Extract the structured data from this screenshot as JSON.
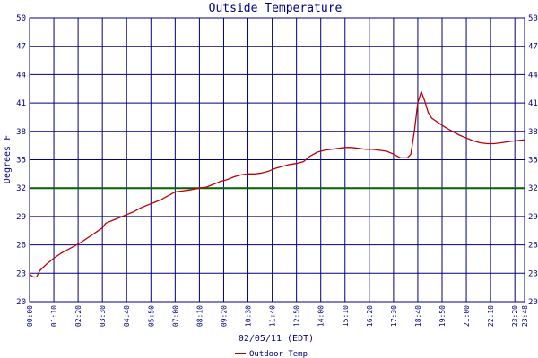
{
  "chart_data": {
    "type": "line",
    "title": "Outside Temperature",
    "xlabel": "02/05/11 (EDT)",
    "ylabel": "Degrees F",
    "ylim": [
      20,
      50
    ],
    "yticks": [
      20,
      23,
      26,
      29,
      32,
      35,
      38,
      41,
      44,
      47,
      50
    ],
    "x_tick_labels": [
      "00:00",
      "01:10",
      "02:20",
      "03:30",
      "04:40",
      "05:50",
      "07:00",
      "08:10",
      "09:20",
      "10:30",
      "11:40",
      "12:50",
      "14:00",
      "15:10",
      "16:20",
      "17:30",
      "18:40",
      "19:50",
      "21:00",
      "22:10",
      "23:20",
      "23:48"
    ],
    "x_unit": "minutes since 00:00",
    "xlim": [
      0,
      1428
    ],
    "grid": true,
    "reference_line": 32,
    "legend_position": "bottom-center",
    "colors": {
      "grid": "#000080",
      "series": "#c00000",
      "reference": "#006400",
      "text": "#000080"
    },
    "series": [
      {
        "name": "Outdoor Temp",
        "points": [
          [
            0,
            22.9
          ],
          [
            10,
            22.6
          ],
          [
            20,
            22.6
          ],
          [
            30,
            23.3
          ],
          [
            50,
            24.0
          ],
          [
            70,
            24.6
          ],
          [
            90,
            25.1
          ],
          [
            110,
            25.5
          ],
          [
            130,
            25.9
          ],
          [
            150,
            26.3
          ],
          [
            170,
            26.8
          ],
          [
            190,
            27.3
          ],
          [
            210,
            27.8
          ],
          [
            220,
            28.3
          ],
          [
            240,
            28.6
          ],
          [
            260,
            28.9
          ],
          [
            280,
            29.2
          ],
          [
            300,
            29.5
          ],
          [
            320,
            29.9
          ],
          [
            340,
            30.2
          ],
          [
            360,
            30.5
          ],
          [
            380,
            30.8
          ],
          [
            400,
            31.2
          ],
          [
            420,
            31.6
          ],
          [
            440,
            31.7
          ],
          [
            460,
            31.8
          ],
          [
            490,
            32.0
          ],
          [
            510,
            32.1
          ],
          [
            530,
            32.4
          ],
          [
            550,
            32.7
          ],
          [
            570,
            32.9
          ],
          [
            590,
            33.2
          ],
          [
            610,
            33.4
          ],
          [
            630,
            33.5
          ],
          [
            650,
            33.5
          ],
          [
            670,
            33.6
          ],
          [
            690,
            33.8
          ],
          [
            710,
            34.1
          ],
          [
            730,
            34.3
          ],
          [
            750,
            34.5
          ],
          [
            770,
            34.6
          ],
          [
            790,
            34.8
          ],
          [
            810,
            35.4
          ],
          [
            830,
            35.8
          ],
          [
            850,
            36.0
          ],
          [
            870,
            36.1
          ],
          [
            890,
            36.2
          ],
          [
            910,
            36.3
          ],
          [
            930,
            36.3
          ],
          [
            950,
            36.2
          ],
          [
            970,
            36.1
          ],
          [
            990,
            36.1
          ],
          [
            1010,
            36.0
          ],
          [
            1030,
            35.9
          ],
          [
            1050,
            35.6
          ],
          [
            1070,
            35.2
          ],
          [
            1090,
            35.2
          ],
          [
            1100,
            35.6
          ],
          [
            1110,
            38.0
          ],
          [
            1120,
            41.0
          ],
          [
            1130,
            42.2
          ],
          [
            1140,
            41.2
          ],
          [
            1150,
            40.0
          ],
          [
            1160,
            39.4
          ],
          [
            1180,
            38.9
          ],
          [
            1200,
            38.4
          ],
          [
            1220,
            38.0
          ],
          [
            1240,
            37.6
          ],
          [
            1260,
            37.3
          ],
          [
            1280,
            37.0
          ],
          [
            1300,
            36.8
          ],
          [
            1320,
            36.7
          ],
          [
            1340,
            36.7
          ],
          [
            1360,
            36.8
          ],
          [
            1380,
            36.9
          ],
          [
            1400,
            37.0
          ],
          [
            1428,
            37.1
          ]
        ]
      }
    ]
  }
}
